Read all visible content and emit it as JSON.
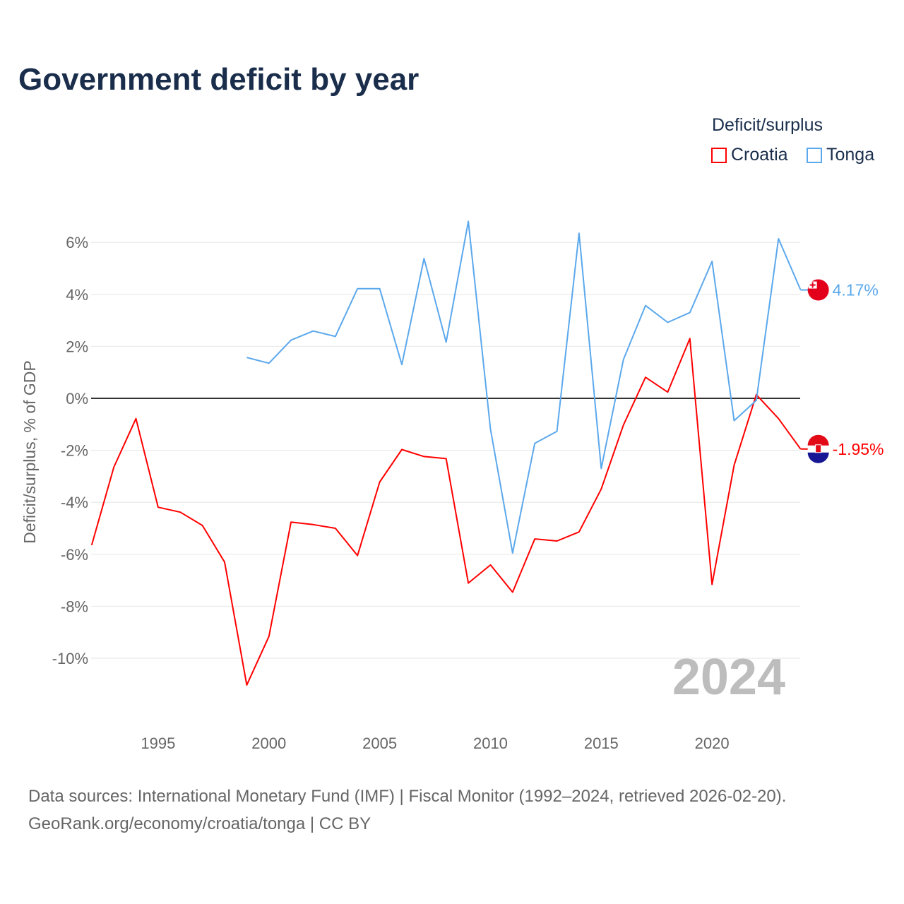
{
  "chart_data": {
    "type": "line",
    "title": "Government deficit by year",
    "ylabel": "Deficit/surplus, % of GDP",
    "xlabel": "",
    "ylim": [
      -12,
      7
    ],
    "xlim": [
      1992,
      2024
    ],
    "yticks": [
      6,
      4,
      2,
      0,
      -2,
      -4,
      -6,
      -8,
      -10
    ],
    "ytick_labels": [
      "6%",
      "4%",
      "2%",
      "0%",
      "-2%",
      "-4%",
      "-6%",
      "-8%",
      "-10%"
    ],
    "xticks": [
      1995,
      2000,
      2005,
      2010,
      2015,
      2020
    ],
    "xtick_labels": [
      "1995",
      "2000",
      "2005",
      "2010",
      "2015",
      "2020"
    ],
    "grid": true,
    "legend_title": "Deficit/surplus",
    "legend_position": "top-right",
    "year_watermark": "2024",
    "series": [
      {
        "name": "Croatia",
        "color": "#ff0000",
        "end_label": "-1.95%",
        "x": [
          1992,
          1993,
          1994,
          1995,
          1996,
          1997,
          1998,
          1999,
          2000,
          2001,
          2002,
          2003,
          2004,
          2005,
          2006,
          2007,
          2008,
          2009,
          2010,
          2011,
          2012,
          2013,
          2014,
          2015,
          2016,
          2017,
          2018,
          2019,
          2020,
          2021,
          2022,
          2023,
          2024
        ],
        "values": [
          -5.65,
          -2.65,
          -0.78,
          -4.19,
          -4.38,
          -4.89,
          -6.3,
          -11.03,
          -9.16,
          -4.76,
          -4.86,
          -5.0,
          -6.05,
          -3.22,
          -1.97,
          -2.24,
          -2.32,
          -7.11,
          -6.41,
          -7.46,
          -5.41,
          -5.49,
          -5.14,
          -3.49,
          -1.03,
          0.81,
          0.24,
          2.3,
          -7.16,
          -2.57,
          0.14,
          -0.78,
          -1.95
        ]
      },
      {
        "name": "Tonga",
        "color": "#5ba8ec",
        "end_label": "4.17%",
        "x": [
          1999,
          2000,
          2001,
          2002,
          2003,
          2004,
          2005,
          2006,
          2007,
          2008,
          2009,
          2010,
          2011,
          2012,
          2013,
          2014,
          2015,
          2016,
          2017,
          2018,
          2019,
          2020,
          2021,
          2022,
          2023,
          2024
        ],
        "values": [
          1.57,
          1.35,
          2.24,
          2.59,
          2.38,
          4.22,
          4.22,
          1.3,
          5.38,
          2.16,
          6.81,
          -1.19,
          -5.95,
          -1.73,
          -1.27,
          6.35,
          -2.7,
          1.49,
          3.57,
          2.92,
          3.3,
          5.27,
          -0.86,
          -0.08,
          6.14,
          4.17
        ]
      }
    ]
  },
  "sources": {
    "line1": "Data sources: International Monetary Fund (IMF) | Fiscal Monitor (1992–2024, retrieved 2026-02-20).",
    "line2": "GeoRank.org/economy/croatia/tonga | CC BY"
  }
}
